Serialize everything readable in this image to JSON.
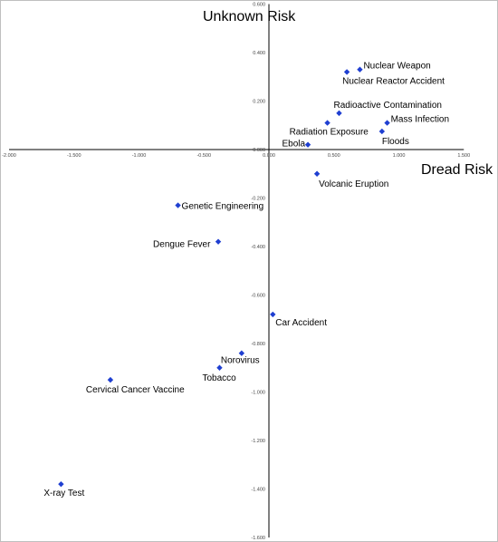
{
  "chart_data": {
    "type": "scatter",
    "title": "",
    "xlabel": "Dread Risk",
    "ylabel": "Unknown Risk",
    "xlim": [
      -2.0,
      1.5
    ],
    "ylim": [
      -1.6,
      0.6
    ],
    "x_ticks": [
      "-2.000",
      "-1.500",
      "-1.000",
      "-0.500",
      "0.000",
      "0.500",
      "1.000",
      "1.500"
    ],
    "y_ticks": [
      "0.600",
      "0.400",
      "0.200",
      "0.000",
      "-0.200",
      "-0.400",
      "-0.600",
      "-0.800",
      "-1.000",
      "-1.200",
      "-1.400",
      "-1.600"
    ],
    "marker_color": "#1f3fd1",
    "grid": false,
    "points": [
      {
        "label": "Nuclear Weapon",
        "x": 0.7,
        "y": 0.33
      },
      {
        "label": "Nuclear Reactor Accident",
        "x": 0.6,
        "y": 0.32
      },
      {
        "label": "Radioactive Contamination",
        "x": 0.54,
        "y": 0.15
      },
      {
        "label": "Mass Infection",
        "x": 0.91,
        "y": 0.11
      },
      {
        "label": "Radiation Exposure",
        "x": 0.45,
        "y": 0.11
      },
      {
        "label": "Floods",
        "x": 0.87,
        "y": 0.075
      },
      {
        "label": "Ebola",
        "x": 0.3,
        "y": 0.02
      },
      {
        "label": "Volcanic Eruption",
        "x": 0.37,
        "y": -0.1
      },
      {
        "label": "Genetic Engineering",
        "x": -0.7,
        "y": -0.23
      },
      {
        "label": "Dengue Fever",
        "x": -0.39,
        "y": -0.38
      },
      {
        "label": "Car Accident",
        "x": 0.03,
        "y": -0.68
      },
      {
        "label": "Norovirus",
        "x": -0.21,
        "y": -0.84
      },
      {
        "label": "Tobacco",
        "x": -0.38,
        "y": -0.9
      },
      {
        "label": "Cervical Cancer Vaccine",
        "x": -1.22,
        "y": -0.95
      },
      {
        "label": "X-ray Test",
        "x": -1.6,
        "y": -1.38
      }
    ]
  }
}
